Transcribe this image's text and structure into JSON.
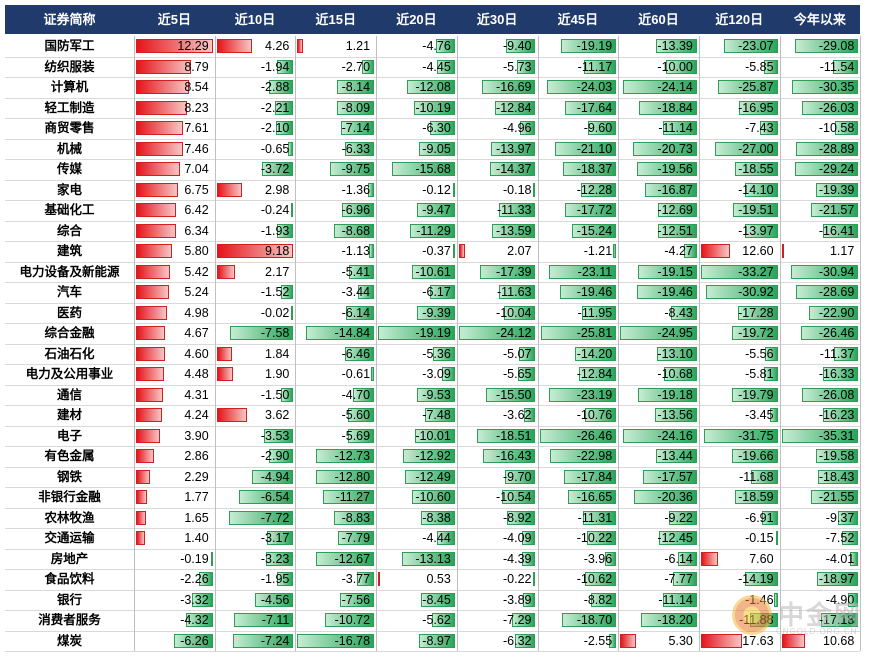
{
  "chart_data": {
    "type": "table",
    "row_header": "证券简称",
    "columns": [
      "近5日",
      "近10日",
      "近15日",
      "近20日",
      "近30日",
      "近45日",
      "近60日",
      "近120日",
      "今年以来"
    ],
    "rows": [
      {
        "name": "国防军工",
        "values": [
          12.29,
          4.26,
          1.21,
          -4.76,
          -9.4,
          -19.19,
          -13.39,
          -23.07,
          -29.08
        ]
      },
      {
        "name": "纺织服装",
        "values": [
          8.79,
          -1.94,
          -2.7,
          -4.45,
          -5.73,
          -11.17,
          -10.0,
          -5.85,
          -11.54
        ]
      },
      {
        "name": "计算机",
        "values": [
          8.54,
          -2.88,
          -8.14,
          -12.08,
          -16.69,
          -24.03,
          -24.14,
          -25.87,
          -30.35
        ]
      },
      {
        "name": "轻工制造",
        "values": [
          8.23,
          -2.21,
          -8.09,
          -10.19,
          -12.84,
          -17.64,
          -18.84,
          -16.95,
          -26.03
        ]
      },
      {
        "name": "商贸零售",
        "values": [
          7.61,
          -2.1,
          -7.14,
          -6.3,
          -4.96,
          -9.6,
          -11.14,
          -7.43,
          -10.58
        ]
      },
      {
        "name": "机械",
        "values": [
          7.46,
          -0.65,
          -6.33,
          -9.05,
          -13.97,
          -21.1,
          -20.73,
          -27.0,
          -28.89
        ]
      },
      {
        "name": "传媒",
        "values": [
          7.04,
          -3.72,
          -9.75,
          -15.68,
          -14.37,
          -18.37,
          -19.56,
          -18.55,
          -29.24
        ]
      },
      {
        "name": "家电",
        "values": [
          6.75,
          2.98,
          -1.36,
          -0.12,
          -0.18,
          -12.28,
          -16.87,
          -14.1,
          -19.39
        ]
      },
      {
        "name": "基础化工",
        "values": [
          6.42,
          -0.24,
          -6.96,
          -9.47,
          -11.33,
          -17.72,
          -12.69,
          -19.51,
          -21.57
        ]
      },
      {
        "name": "综合",
        "values": [
          6.34,
          -1.93,
          -8.68,
          -11.29,
          -13.59,
          -15.24,
          -12.51,
          -13.97,
          -16.41
        ]
      },
      {
        "name": "建筑",
        "values": [
          5.8,
          9.18,
          -1.13,
          -0.37,
          2.07,
          -1.21,
          -4.27,
          12.6,
          1.17
        ]
      },
      {
        "name": "电力设备及新能源",
        "values": [
          5.42,
          2.17,
          -5.41,
          -10.61,
          -17.39,
          -23.11,
          -19.15,
          -33.27,
          -30.94
        ]
      },
      {
        "name": "汽车",
        "values": [
          5.24,
          -1.52,
          -3.44,
          -6.17,
          -11.63,
          -19.46,
          -19.46,
          -30.92,
          -28.69
        ]
      },
      {
        "name": "医药",
        "values": [
          4.98,
          -0.02,
          -6.14,
          -9.39,
          -10.04,
          -11.95,
          -8.43,
          -17.28,
          -22.9
        ]
      },
      {
        "name": "综合金融",
        "values": [
          4.67,
          -7.58,
          -14.84,
          -19.19,
          -24.12,
          -25.81,
          -24.95,
          -19.72,
          -26.46
        ]
      },
      {
        "name": "石油石化",
        "values": [
          4.6,
          1.84,
          -6.46,
          -5.36,
          -5.07,
          -14.2,
          -13.1,
          -5.56,
          -11.37
        ]
      },
      {
        "name": "电力及公用事业",
        "values": [
          4.48,
          1.9,
          -0.61,
          -3.09,
          -5.65,
          -12.84,
          -10.68,
          -5.81,
          -16.33
        ]
      },
      {
        "name": "通信",
        "values": [
          4.31,
          -1.5,
          -4.7,
          -9.53,
          -15.5,
          -23.19,
          -19.18,
          -19.79,
          -26.08
        ]
      },
      {
        "name": "建材",
        "values": [
          4.24,
          3.62,
          -5.6,
          -7.48,
          -3.62,
          -10.76,
          -13.56,
          -3.45,
          -16.23
        ]
      },
      {
        "name": "电子",
        "values": [
          3.9,
          -3.53,
          -5.69,
          -10.01,
          -18.51,
          -26.46,
          -24.16,
          -31.75,
          -35.31
        ]
      },
      {
        "name": "有色金属",
        "values": [
          2.86,
          -2.9,
          -12.73,
          -12.92,
          -16.43,
          -22.98,
          -13.44,
          -19.66,
          -19.58
        ]
      },
      {
        "name": "钢铁",
        "values": [
          2.29,
          -4.94,
          -12.8,
          -12.49,
          -9.7,
          -17.84,
          -17.57,
          -11.68,
          -18.43
        ]
      },
      {
        "name": "非银行金融",
        "values": [
          1.77,
          -6.54,
          -11.27,
          -10.6,
          -10.54,
          -16.65,
          -20.36,
          -18.59,
          -21.55
        ]
      },
      {
        "name": "农林牧渔",
        "values": [
          1.65,
          -7.72,
          -8.83,
          -8.38,
          -8.92,
          -11.31,
          -9.22,
          -6.91,
          -9.37
        ]
      },
      {
        "name": "交通运输",
        "values": [
          1.4,
          -3.17,
          -7.79,
          -4.44,
          -4.09,
          -10.22,
          -12.45,
          -0.15,
          -7.52
        ]
      },
      {
        "name": "房地产",
        "values": [
          -0.19,
          -3.23,
          -12.67,
          -13.13,
          -4.39,
          -3.96,
          -6.14,
          7.6,
          -4.01
        ]
      },
      {
        "name": "食品饮料",
        "values": [
          -2.26,
          -1.95,
          -3.77,
          0.53,
          -0.22,
          -10.62,
          -7.77,
          -14.19,
          -18.97
        ]
      },
      {
        "name": "银行",
        "values": [
          -3.32,
          -4.56,
          -7.56,
          -8.45,
          -3.89,
          -8.82,
          -11.14,
          -1.46,
          -4.9
        ]
      },
      {
        "name": "消费者服务",
        "values": [
          -4.32,
          -7.11,
          -10.72,
          -5.62,
          -7.29,
          -18.7,
          -18.2,
          -11.88,
          -17.18
        ]
      },
      {
        "name": "煤炭",
        "values": [
          -6.26,
          -7.24,
          -16.78,
          -8.97,
          -6.32,
          -2.55,
          5.3,
          17.63,
          10.68
        ]
      }
    ]
  },
  "watermark": {
    "cn": "中金网",
    "en": "CNGOLD.ORG.CN",
    "sub": "中金网"
  },
  "colors": {
    "header_bg": "#1f3a6b",
    "positive": "#e5141a",
    "negative": "#28a55a"
  }
}
